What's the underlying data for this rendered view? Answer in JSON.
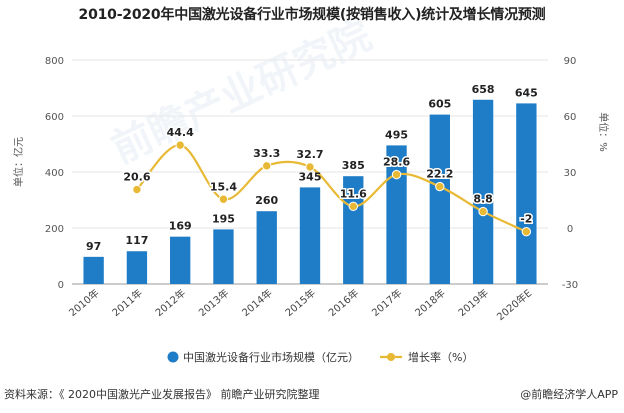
{
  "title": "2010-2020年中国激光设备行业市场规模(按销售收入)统计及增长情况预测",
  "footer": {
    "source": "资料来源：《 2020中国激光产业发展报告》 前瞻产业研究院整理",
    "brand": "@前瞻经济学人APP"
  },
  "watermark": "前瞻产业研究院",
  "colors": {
    "bar": "#1f7dc7",
    "line": "#e8b935",
    "grid": "#e6e6e6"
  },
  "chart_data": {
    "type": "bar",
    "categories": [
      "2010年",
      "2011年",
      "2012年",
      "2013年",
      "2014年",
      "2015年",
      "2016年",
      "2017年",
      "2018年",
      "2019年",
      "2020年E"
    ],
    "series": [
      {
        "name": "中国激光设备行业市场规模（亿元）",
        "type": "bar",
        "axis": "left",
        "values": [
          97,
          117,
          169,
          195,
          260,
          345,
          385,
          495,
          605,
          658,
          645
        ]
      },
      {
        "name": "增长率（%）",
        "type": "line",
        "axis": "right",
        "values": [
          null,
          20.6,
          44.4,
          15.4,
          33.3,
          32.7,
          11.6,
          28.6,
          22.2,
          8.8,
          -2
        ]
      }
    ],
    "left_axis": {
      "label": "单位：亿元",
      "range": [
        0,
        800
      ],
      "ticks": [
        0,
        200,
        400,
        600,
        800
      ]
    },
    "right_axis": {
      "label": "单位：%",
      "range": [
        -30,
        90
      ],
      "ticks": [
        -30,
        0,
        30,
        60,
        90
      ]
    },
    "legend_position": "bottom"
  }
}
